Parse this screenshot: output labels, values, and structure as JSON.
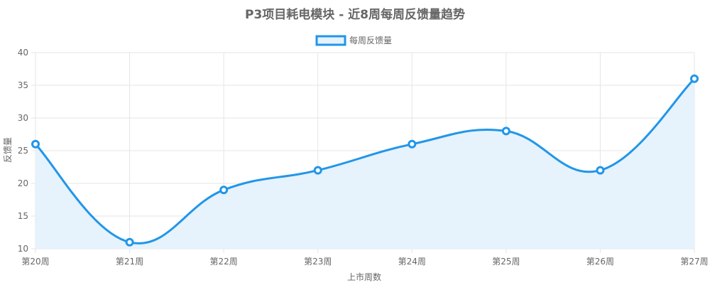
{
  "chart_data": {
    "type": "line",
    "title": "P3项目耗电模块 - 近8周每周反馈量趋势",
    "xlabel": "上市周数",
    "ylabel": "反馈量",
    "categories": [
      "第20周",
      "第21周",
      "第22周",
      "第23周",
      "第24周",
      "第25周",
      "第26周",
      "第27周"
    ],
    "series": [
      {
        "name": "每周反馈量",
        "values": [
          26,
          11,
          19,
          22,
          26,
          28,
          22,
          36
        ]
      }
    ],
    "ylim": [
      10,
      40
    ],
    "yticks": [
      10,
      15,
      20,
      25,
      30,
      35,
      40
    ],
    "grid": true,
    "legend_position": "top-center",
    "colors": {
      "line": "#2196e8",
      "fill": "#e6f2fc",
      "grid": "#e5e5e5",
      "text": "#666666"
    }
  }
}
